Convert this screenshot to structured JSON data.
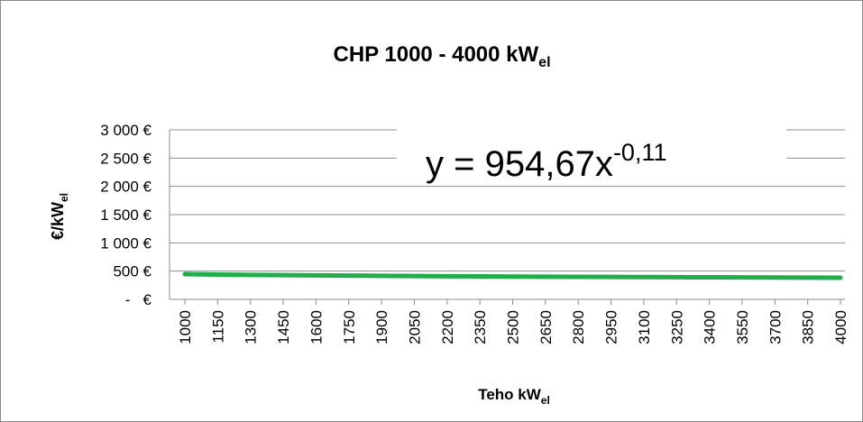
{
  "chart_data": {
    "type": "line",
    "title": {
      "text": "CHP 1000 - 4000 kW",
      "subscript": "el"
    },
    "y_label": {
      "text": "€/kW",
      "subscript": "el"
    },
    "x_label": {
      "text": "Teho kW",
      "subscript": "el"
    },
    "annotation": {
      "text": "y = 954,67x",
      "superscript": "-0,11"
    },
    "x": [
      1000,
      1150,
      1300,
      1450,
      1600,
      1750,
      1900,
      2050,
      2200,
      2350,
      2500,
      2650,
      2800,
      2950,
      3100,
      3250,
      3400,
      3550,
      3700,
      3850,
      4000
    ],
    "series": [
      {
        "color": "#21ad4b",
        "values": [
          446.5,
          439.7,
          433.8,
          428.6,
          424.0,
          419.9,
          416.1,
          412.6,
          409.4,
          406.5,
          403.7,
          401.1,
          398.7,
          396.4,
          394.3,
          392.3,
          390.3,
          388.4,
          386.7,
          385.0,
          383.4
        ]
      }
    ],
    "xlim": [
      1000,
      4000
    ],
    "xticks": [
      1000,
      1150,
      1300,
      1450,
      1600,
      1750,
      1900,
      2050,
      2200,
      2350,
      2500,
      2650,
      2800,
      2950,
      3100,
      3250,
      3400,
      3550,
      3700,
      3850,
      4000
    ],
    "ylim": [
      0,
      3000
    ],
    "yticks": [
      {
        "value": 0,
        "label": "-   €"
      },
      {
        "value": 500,
        "label": "500 €"
      },
      {
        "value": 1000,
        "label": "1 000 €"
      },
      {
        "value": 1500,
        "label": "1 500 €"
      },
      {
        "value": 2000,
        "label": "2 000 €"
      },
      {
        "value": 2500,
        "label": "2 500 €"
      },
      {
        "value": 3000,
        "label": "3 000 €"
      }
    ],
    "grid": true
  }
}
